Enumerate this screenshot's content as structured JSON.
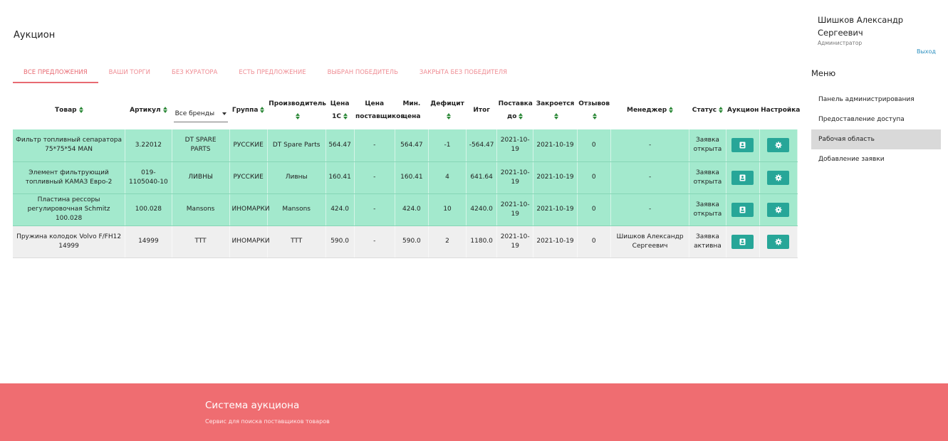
{
  "page": {
    "title": "Аукцион"
  },
  "tabs": [
    {
      "label": "ВСЕ ПРЕДЛОЖЕНИЯ"
    },
    {
      "label": "ВАШИ ТОРГИ"
    },
    {
      "label": "БЕЗ КУРАТОРА"
    },
    {
      "label": "ЕСТЬ ПРЕДЛОЖЕНИЕ"
    },
    {
      "label": "ВЫБРАН ПОБЕДИТЕЛЬ"
    },
    {
      "label": "ЗАКРЫТА БЕЗ ПОБЕДИТЕЛЯ"
    }
  ],
  "table": {
    "headers": {
      "product": "Товар",
      "article": "Артикул",
      "brand_select": "Все бренды",
      "group": "Группа",
      "manufacturer": "Производитель",
      "price1c_l1": "Цена",
      "price1c_l2": "1С",
      "supplier_l1": "Цена",
      "supplier_l2": "поставщиков",
      "min_l1": "Мин.",
      "min_l2": "цена",
      "deficit": "Дефицит",
      "total": "Итог",
      "delivery_l1": "Поставка",
      "delivery_l2": "до",
      "closes": "Закроется",
      "reviews": "Отзывов",
      "manager": "Менеджер",
      "status": "Статус",
      "auction": "Аукцион",
      "settings": "Настройка"
    },
    "rows": [
      {
        "product": "Фильтр топливный сепаратора 75*75*54 MAN",
        "article": "3.22012",
        "brand": "DT SPARE PARTS",
        "group": "РУССКИЕ",
        "manufacturer": "DT Spare Parts",
        "price1c": "564.47",
        "supplier_price": "-",
        "min_price": "564.47",
        "deficit": "-1",
        "total": "-564.47",
        "delivery": "2021-10-19",
        "closes": "2021-10-19",
        "reviews": "0",
        "manager": "-",
        "status": "Заявка открыта"
      },
      {
        "product": "Элемент фильтрующий топливный КАМАЗ Евро-2",
        "article": "019-1105040-10",
        "brand": "ЛИВНЫ",
        "group": "РУССКИЕ",
        "manufacturer": "Ливны",
        "price1c": "160.41",
        "supplier_price": "-",
        "min_price": "160.41",
        "deficit": "4",
        "total": "641.64",
        "delivery": "2021-10-19",
        "closes": "2021-10-19",
        "reviews": "0",
        "manager": "-",
        "status": "Заявка открыта"
      },
      {
        "product": "Пластина рессоры регулировочная Schmitz 100.028",
        "article": "100.028",
        "brand": "Mansons",
        "group": "ИНОМАРКИ",
        "manufacturer": "Mansons",
        "price1c": "424.0",
        "supplier_price": "-",
        "min_price": "424.0",
        "deficit": "10",
        "total": "4240.0",
        "delivery": "2021-10-19",
        "closes": "2021-10-19",
        "reviews": "0",
        "manager": "-",
        "status": "Заявка открыта"
      },
      {
        "product": "Пружина колодок Volvo F/FH12 14999",
        "article": "14999",
        "brand": "TTT",
        "group": "ИНОМАРКИ",
        "manufacturer": "TTT",
        "price1c": "590.0",
        "supplier_price": "-",
        "min_price": "590.0",
        "deficit": "2",
        "total": "1180.0",
        "delivery": "2021-10-19",
        "closes": "2021-10-19",
        "reviews": "0",
        "manager": "Шишков Александр Сергеевич",
        "status": "Заявка активна"
      }
    ]
  },
  "user": {
    "name": "Шишков Александр Сергеевич",
    "role": "Администратор",
    "logout": "Выход"
  },
  "menu": {
    "title": "Меню",
    "items": [
      {
        "label": "Панель администрирования"
      },
      {
        "label": "Предоставление доступа"
      },
      {
        "label": "Рабочая область"
      },
      {
        "label": "Добавление заявки"
      }
    ]
  },
  "footer": {
    "title": "Система аукциона",
    "subtitle": "Сервис для поиска поставщиков товаров"
  },
  "colors": {
    "accent": "#ef6d71",
    "row_open": "#a3e9cd",
    "row_active": "#efefef",
    "button": "#27a698",
    "sort_arrows": "#2e8a3a",
    "link": "#2a8fbf"
  },
  "icons": {
    "auction_button": "contact-card-icon",
    "settings_button": "gear-icon"
  }
}
